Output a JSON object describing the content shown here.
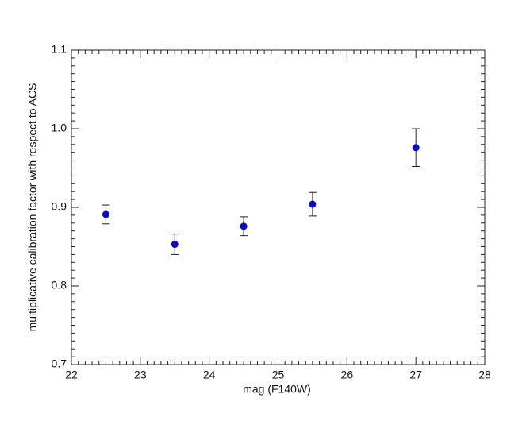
{
  "chart_data": {
    "type": "errorbar",
    "xlabel": "mag (F140W)",
    "ylabel": "multiplicative calibration factor with respect to ACS",
    "x": [
      22.5,
      23.5,
      24.5,
      25.5,
      27
    ],
    "values": [
      0.891,
      0.853,
      0.876,
      0.904,
      0.976
    ],
    "errors": [
      0.012,
      0.013,
      0.012,
      0.015,
      0.024
    ],
    "color": "#0a0ac8",
    "xlim": [
      22,
      28
    ],
    "xticks": [
      22,
      23,
      24,
      25,
      26,
      27,
      28
    ],
    "ylim": [
      0.7,
      1.1
    ],
    "yticks": [
      0.7,
      0.8,
      0.9,
      {
        "value": 1,
        "label": "1.0"
      },
      1.1
    ]
  }
}
